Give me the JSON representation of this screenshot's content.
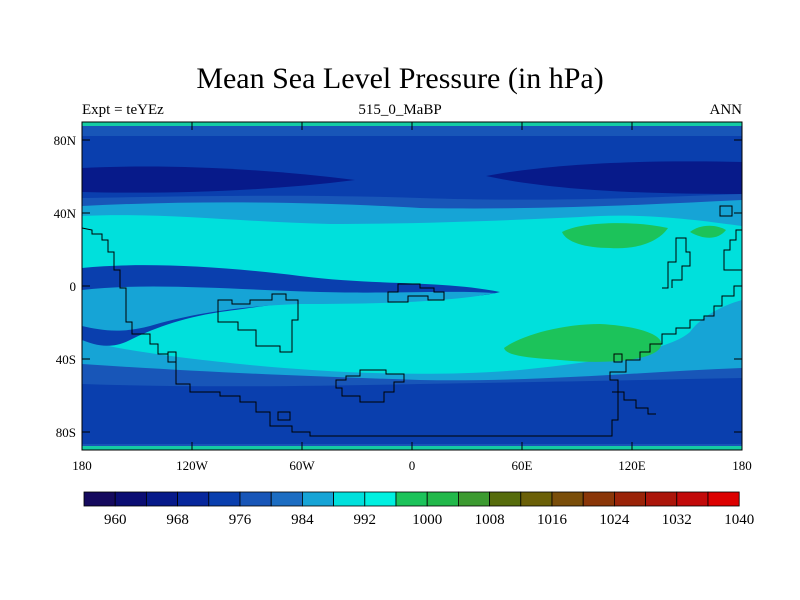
{
  "title": "Mean Sea Level Pressure (in hPa)",
  "subtitle_left": "Expt = teYEz",
  "subtitle_center": "515_0_MaBP",
  "subtitle_right": "ANN",
  "lat_ticks": [
    "80N",
    "40N",
    "0",
    "40S",
    "80S"
  ],
  "lon_ticks": [
    "180",
    "120W",
    "60W",
    "0",
    "60E",
    "120E",
    "180"
  ],
  "colorbar": {
    "labels": [
      "960",
      "968",
      "976",
      "984",
      "992",
      "1000",
      "1008",
      "1016",
      "1024",
      "1032",
      "1040"
    ],
    "colors": [
      "#150a5e",
      "#0b0d73",
      "#071a8a",
      "#07279c",
      "#0a3fae",
      "#1856b8",
      "#1c6dc2",
      "#16a4d6",
      "#00e0dc",
      "#00f0e0",
      "#1cc35a",
      "#22b84a",
      "#3c9a30",
      "#566c0c",
      "#6b6008",
      "#7a4e0a",
      "#8a3608",
      "#9a2308",
      "#ab150a",
      "#c20a0a",
      "#dc0000"
    ]
  },
  "field_colors": {
    "c976": "#071a8a",
    "c984": "#0a3fae",
    "c988": "#1856b8",
    "c992": "#16a4d6",
    "c1000": "#00e0dc",
    "c1008": "#1cc35a",
    "polar": "#14cca4"
  }
}
